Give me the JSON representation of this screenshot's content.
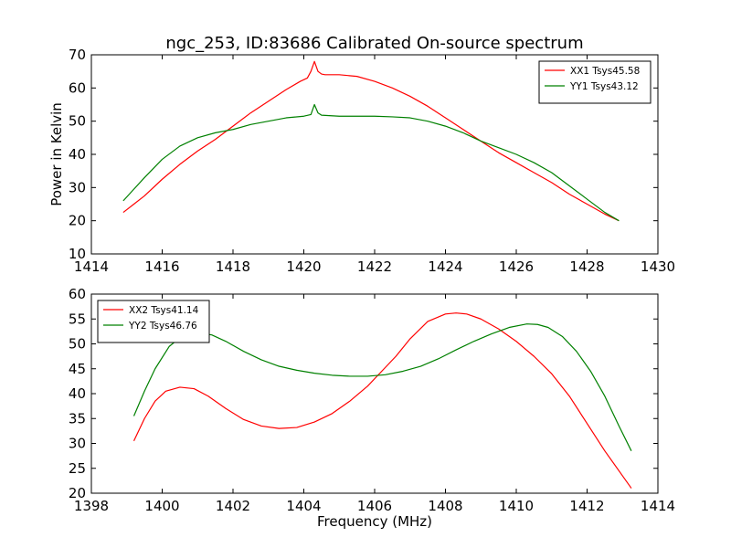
{
  "figure": {
    "title": "ngc_253, ID:83686 Calibrated On-source spectrum"
  },
  "chart_data": [
    {
      "type": "line",
      "title": "ngc_253, ID:83686 Calibrated On-source spectrum",
      "xlabel": "",
      "ylabel": "Power in Kelvin",
      "xlim": [
        1414,
        1430
      ],
      "ylim": [
        10,
        70
      ],
      "xticks": [
        1414,
        1416,
        1418,
        1420,
        1422,
        1424,
        1426,
        1428,
        1430
      ],
      "yticks": [
        10,
        20,
        30,
        40,
        50,
        60,
        70
      ],
      "grid": false,
      "legend_position": "top-right",
      "series": [
        {
          "name": "XX1 Tsys45.58",
          "color": "#ff0000",
          "x": [
            1414.9,
            1415.2,
            1415.5,
            1416.0,
            1416.5,
            1417.0,
            1417.5,
            1418.0,
            1418.5,
            1419.0,
            1419.5,
            1419.9,
            1420.1,
            1420.2,
            1420.3,
            1420.4,
            1420.5,
            1420.6,
            1421.0,
            1421.5,
            1422.0,
            1422.5,
            1423.0,
            1423.5,
            1424.0,
            1424.5,
            1425.0,
            1425.5,
            1426.0,
            1426.5,
            1427.0,
            1427.5,
            1428.0,
            1428.5,
            1428.9
          ],
          "y": [
            22.5,
            25.0,
            27.5,
            32.5,
            37.0,
            41.0,
            44.5,
            48.5,
            52.5,
            56.0,
            59.5,
            62.0,
            63.0,
            65.0,
            68.0,
            65.0,
            64.2,
            64.0,
            64.0,
            63.5,
            62.0,
            60.0,
            57.5,
            54.5,
            51.0,
            47.5,
            44.0,
            40.5,
            37.5,
            34.5,
            31.5,
            28.0,
            25.0,
            22.0,
            20.0
          ]
        },
        {
          "name": "YY1 Tsys43.12",
          "color": "#008000",
          "x": [
            1414.9,
            1415.2,
            1415.5,
            1416.0,
            1416.5,
            1417.0,
            1417.5,
            1418.0,
            1418.5,
            1419.0,
            1419.5,
            1420.0,
            1420.2,
            1420.3,
            1420.4,
            1420.5,
            1421.0,
            1421.5,
            1422.0,
            1422.5,
            1423.0,
            1423.5,
            1424.0,
            1424.5,
            1425.0,
            1425.5,
            1426.0,
            1426.5,
            1427.0,
            1427.5,
            1428.0,
            1428.5,
            1428.9
          ],
          "y": [
            26.0,
            29.5,
            33.0,
            38.5,
            42.5,
            45.0,
            46.5,
            47.5,
            49.0,
            50.0,
            51.0,
            51.5,
            52.0,
            55.0,
            52.5,
            51.8,
            51.5,
            51.5,
            51.5,
            51.3,
            51.0,
            50.0,
            48.5,
            46.5,
            44.0,
            42.0,
            40.0,
            37.5,
            34.5,
            30.5,
            26.5,
            22.5,
            20.0
          ]
        }
      ]
    },
    {
      "type": "line",
      "title": "",
      "xlabel": "Frequency (MHz)",
      "ylabel": "",
      "xlim": [
        1398,
        1414
      ],
      "ylim": [
        20,
        60
      ],
      "xticks": [
        1398,
        1400,
        1402,
        1404,
        1406,
        1408,
        1410,
        1412,
        1414
      ],
      "yticks": [
        20,
        25,
        30,
        35,
        40,
        45,
        50,
        55,
        60
      ],
      "grid": false,
      "legend_position": "top-left",
      "series": [
        {
          "name": "XX2 Tsys41.14",
          "color": "#ff0000",
          "x": [
            1399.2,
            1399.5,
            1399.8,
            1400.1,
            1400.5,
            1400.9,
            1401.3,
            1401.8,
            1402.3,
            1402.8,
            1403.3,
            1403.8,
            1404.3,
            1404.8,
            1405.3,
            1405.8,
            1406.2,
            1406.6,
            1407.0,
            1407.5,
            1408.0,
            1408.3,
            1408.6,
            1409.0,
            1409.5,
            1410.0,
            1410.5,
            1411.0,
            1411.5,
            1412.0,
            1412.5,
            1413.0,
            1413.25
          ],
          "y": [
            30.5,
            35.0,
            38.5,
            40.5,
            41.3,
            41.0,
            39.5,
            37.0,
            34.8,
            33.5,
            33.0,
            33.2,
            34.3,
            36.0,
            38.5,
            41.5,
            44.5,
            47.5,
            51.0,
            54.5,
            56.0,
            56.2,
            56.0,
            55.0,
            53.0,
            50.5,
            47.5,
            44.0,
            39.5,
            34.0,
            28.5,
            23.5,
            21.0
          ]
        },
        {
          "name": "YY2 Tsys46.76",
          "color": "#008000",
          "x": [
            1399.2,
            1399.5,
            1399.8,
            1400.2,
            1400.6,
            1401.0,
            1401.4,
            1401.8,
            1402.3,
            1402.8,
            1403.3,
            1403.8,
            1404.3,
            1404.8,
            1405.3,
            1405.8,
            1406.3,
            1406.8,
            1407.3,
            1407.8,
            1408.3,
            1408.8,
            1409.3,
            1409.8,
            1410.3,
            1410.6,
            1410.9,
            1411.3,
            1411.7,
            1412.1,
            1412.5,
            1412.9,
            1413.25
          ],
          "y": [
            35.5,
            40.5,
            45.0,
            49.5,
            51.8,
            52.2,
            51.8,
            50.5,
            48.5,
            46.8,
            45.5,
            44.7,
            44.1,
            43.7,
            43.5,
            43.5,
            43.8,
            44.5,
            45.5,
            47.0,
            48.8,
            50.5,
            52.0,
            53.3,
            54.0,
            53.9,
            53.3,
            51.5,
            48.5,
            44.5,
            39.5,
            33.5,
            28.5
          ]
        }
      ]
    }
  ]
}
